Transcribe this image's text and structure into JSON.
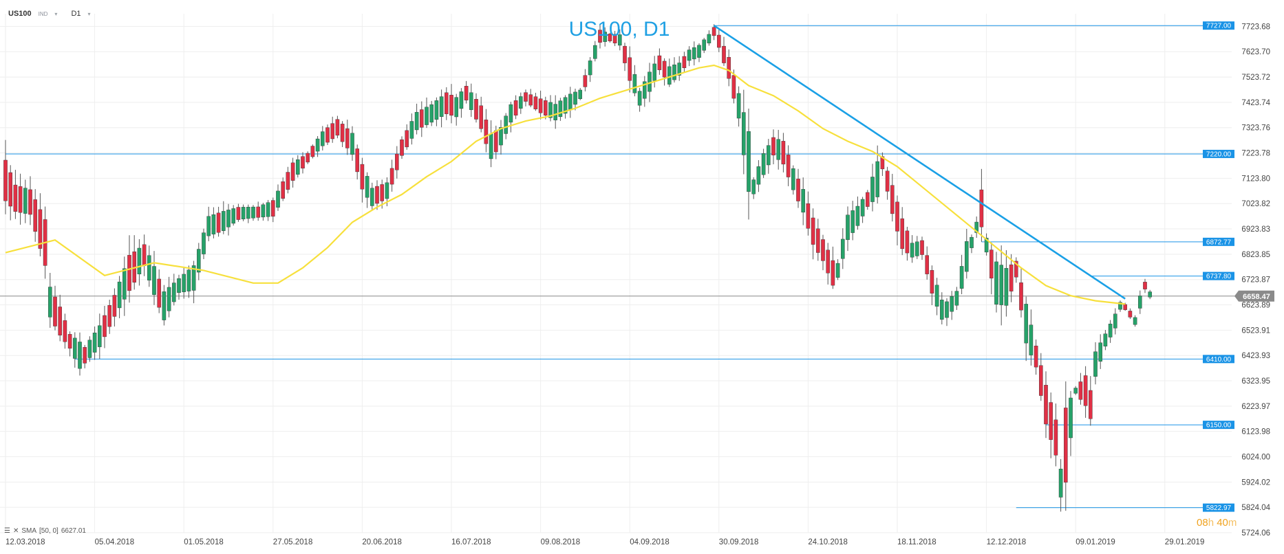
{
  "header": {
    "symbol": "US100",
    "symbol_type": "IND",
    "timeframe": "D1"
  },
  "indicator": {
    "icons": [
      "list-icon",
      "close-icon"
    ],
    "label": "SMA",
    "params": "[50, 0]",
    "value": "6627.01"
  },
  "timer": {
    "hours": "08",
    "h_unit": "h",
    "minutes": "40",
    "m_unit": "m"
  },
  "colors": {
    "up": "#26a269",
    "down": "#e03045",
    "sma": "#f7e03c",
    "level": "#1a93e6",
    "trend": "#1aa0e6",
    "price_line": "#888888",
    "title": "#1fa0e3"
  },
  "chart_data": {
    "type": "candlestick",
    "title": "US100, D1",
    "ylim": [
      5724.06,
      7773.68
    ],
    "y_ticks": [
      "7723.68",
      "7623.70",
      "7523.72",
      "7423.74",
      "7323.76",
      "7223.78",
      "7123.80",
      "7023.82",
      "6923.83",
      "6823.85",
      "6723.87",
      "6623.89",
      "6523.91",
      "6423.93",
      "6323.95",
      "6223.97",
      "6123.98",
      "6024.00",
      "5924.02",
      "5824.04",
      "5724.06"
    ],
    "x_ticks": [
      {
        "label": "12.03.2018",
        "i": 0
      },
      {
        "label": "05.04.2018",
        "i": 18
      },
      {
        "label": "01.05.2018",
        "i": 36
      },
      {
        "label": "27.05.2018",
        "i": 54
      },
      {
        "label": "20.06.2018",
        "i": 72
      },
      {
        "label": "16.07.2018",
        "i": 90
      },
      {
        "label": "09.08.2018",
        "i": 108
      },
      {
        "label": "04.09.2018",
        "i": 126
      },
      {
        "label": "30.09.2018",
        "i": 144
      },
      {
        "label": "24.10.2018",
        "i": 162
      },
      {
        "label": "18.11.2018",
        "i": 180
      },
      {
        "label": "12.12.2018",
        "i": 198
      },
      {
        "label": "09.01.2019",
        "i": 216
      },
      {
        "label": "29.01.2019",
        "i": 234
      }
    ],
    "current_price": "6658.47",
    "levels": [
      {
        "label": "7727.00",
        "value": 7727.0,
        "from_i": 143
      },
      {
        "label": "7220.00",
        "value": 7220.0,
        "from_i": 0
      },
      {
        "label": "6872.77",
        "value": 6872.77,
        "from_i": 197
      },
      {
        "label": "6737.80",
        "value": 6737.8,
        "from_i": 219
      },
      {
        "label": "6410.00",
        "value": 6410.0,
        "from_i": 14
      },
      {
        "label": "6150.00",
        "value": 6150.0,
        "from_i": 210
      },
      {
        "label": "5822.97",
        "value": 5822.97,
        "from_i": 204
      }
    ],
    "trendline": {
      "from": {
        "i": 143,
        "value": 7727
      },
      "to": {
        "i": 226,
        "value": 6648
      }
    },
    "anchors": [
      [
        0,
        7000,
        7230
      ],
      [
        2,
        6970,
        7120
      ],
      [
        5,
        6960,
        7100
      ],
      [
        8,
        6740,
        7000
      ],
      [
        9,
        6550,
        6720
      ],
      [
        11,
        6480,
        6640
      ],
      [
        13,
        6440,
        6520
      ],
      [
        15,
        6350,
        6500
      ],
      [
        16,
        6380,
        6470
      ],
      [
        19,
        6440,
        6560
      ],
      [
        22,
        6560,
        6680
      ],
      [
        25,
        6650,
        6850
      ],
      [
        28,
        6760,
        6880
      ],
      [
        30,
        6640,
        6800
      ],
      [
        32,
        6540,
        6700
      ],
      [
        35,
        6660,
        6740
      ],
      [
        38,
        6660,
        6800
      ],
      [
        41,
        6880,
        6990
      ],
      [
        44,
        6900,
        7010
      ],
      [
        47,
        6950,
        7020
      ],
      [
        51,
        6960,
        7020
      ],
      [
        54,
        6960,
        7050
      ],
      [
        58,
        7100,
        7200
      ],
      [
        61,
        7180,
        7230
      ],
      [
        64,
        7240,
        7320
      ],
      [
        67,
        7280,
        7370
      ],
      [
        70,
        7200,
        7320
      ],
      [
        72,
        7060,
        7200
      ],
      [
        74,
        7000,
        7100
      ],
      [
        77,
        7030,
        7120
      ],
      [
        80,
        7200,
        7290
      ],
      [
        83,
        7300,
        7400
      ],
      [
        86,
        7330,
        7430
      ],
      [
        89,
        7360,
        7480
      ],
      [
        91,
        7350,
        7460
      ],
      [
        93,
        7420,
        7500
      ],
      [
        96,
        7300,
        7430
      ],
      [
        98,
        7180,
        7320
      ],
      [
        100,
        7240,
        7340
      ],
      [
        102,
        7330,
        7430
      ],
      [
        105,
        7420,
        7470
      ],
      [
        108,
        7370,
        7450
      ],
      [
        111,
        7340,
        7430
      ],
      [
        114,
        7380,
        7470
      ],
      [
        116,
        7430,
        7480
      ],
      [
        118,
        7520,
        7600
      ],
      [
        120,
        7650,
        7720
      ],
      [
        122,
        7660,
        7700
      ],
      [
        124,
        7640,
        7700
      ],
      [
        126,
        7490,
        7620
      ],
      [
        128,
        7400,
        7480
      ],
      [
        130,
        7450,
        7560
      ],
      [
        132,
        7540,
        7620
      ],
      [
        134,
        7480,
        7580
      ],
      [
        136,
        7520,
        7590
      ],
      [
        138,
        7580,
        7640
      ],
      [
        140,
        7590,
        7660
      ],
      [
        142,
        7650,
        7700
      ],
      [
        143,
        7680,
        7727
      ],
      [
        144,
        7630,
        7700
      ],
      [
        146,
        7500,
        7620
      ],
      [
        148,
        7340,
        7480
      ],
      [
        150,
        7020,
        7360
      ],
      [
        151,
        7050,
        7130
      ],
      [
        153,
        7120,
        7240
      ],
      [
        155,
        7200,
        7300
      ],
      [
        157,
        7160,
        7290
      ],
      [
        159,
        7060,
        7180
      ],
      [
        161,
        6970,
        7100
      ],
      [
        163,
        6840,
        6990
      ],
      [
        165,
        6780,
        6900
      ],
      [
        167,
        6680,
        6820
      ],
      [
        168,
        6720,
        6800
      ],
      [
        170,
        6860,
        7000
      ],
      [
        172,
        6920,
        7030
      ],
      [
        174,
        7000,
        7080
      ],
      [
        176,
        7020,
        7220
      ],
      [
        177,
        7150,
        7220
      ],
      [
        179,
        6960,
        7120
      ],
      [
        181,
        6820,
        6990
      ],
      [
        183,
        6800,
        6880
      ],
      [
        185,
        6810,
        6890
      ],
      [
        187,
        6650,
        6780
      ],
      [
        189,
        6550,
        6660
      ],
      [
        190,
        6560,
        6650
      ],
      [
        192,
        6610,
        6690
      ],
      [
        194,
        6730,
        6900
      ],
      [
        195,
        6840,
        6900
      ],
      [
        196,
        6900,
        6960
      ],
      [
        197,
        6900,
        7110
      ],
      [
        198,
        6820,
        6900
      ],
      [
        200,
        6590,
        6830
      ],
      [
        202,
        6590,
        6800
      ],
      [
        204,
        6720,
        6810
      ],
      [
        206,
        6440,
        6660
      ],
      [
        208,
        6360,
        6480
      ],
      [
        210,
        6120,
        6340
      ],
      [
        212,
        6000,
        6200
      ],
      [
        213,
        5840,
        6000
      ],
      [
        214,
        5860,
        6280
      ],
      [
        216,
        6270,
        6300
      ],
      [
        218,
        6200,
        6370
      ],
      [
        219,
        6150,
        6310
      ],
      [
        220,
        6320,
        6460
      ],
      [
        222,
        6450,
        6520
      ],
      [
        224,
        6520,
        6600
      ],
      [
        225,
        6600,
        6640
      ],
      [
        226,
        6630,
        6600
      ],
      [
        228,
        6580,
        6540
      ],
      [
        229,
        6600,
        6670
      ],
      [
        230,
        6680,
        6720
      ],
      [
        231,
        6650,
        6680
      ]
    ],
    "sma": [
      [
        0,
        6830
      ],
      [
        10,
        6880
      ],
      [
        20,
        6740
      ],
      [
        30,
        6790
      ],
      [
        40,
        6760
      ],
      [
        50,
        6710
      ],
      [
        55,
        6710
      ],
      [
        60,
        6770
      ],
      [
        65,
        6850
      ],
      [
        70,
        6950
      ],
      [
        75,
        7010
      ],
      [
        80,
        7060
      ],
      [
        85,
        7130
      ],
      [
        90,
        7190
      ],
      [
        95,
        7270
      ],
      [
        100,
        7320
      ],
      [
        105,
        7350
      ],
      [
        110,
        7370
      ],
      [
        115,
        7400
      ],
      [
        120,
        7440
      ],
      [
        125,
        7470
      ],
      [
        130,
        7500
      ],
      [
        135,
        7530
      ],
      [
        140,
        7560
      ],
      [
        143,
        7570
      ],
      [
        146,
        7550
      ],
      [
        150,
        7490
      ],
      [
        155,
        7450
      ],
      [
        160,
        7390
      ],
      [
        165,
        7320
      ],
      [
        170,
        7270
      ],
      [
        175,
        7230
      ],
      [
        180,
        7170
      ],
      [
        185,
        7090
      ],
      [
        190,
        7010
      ],
      [
        195,
        6930
      ],
      [
        200,
        6850
      ],
      [
        205,
        6770
      ],
      [
        210,
        6700
      ],
      [
        215,
        6660
      ],
      [
        220,
        6640
      ],
      [
        226,
        6627
      ]
    ]
  }
}
